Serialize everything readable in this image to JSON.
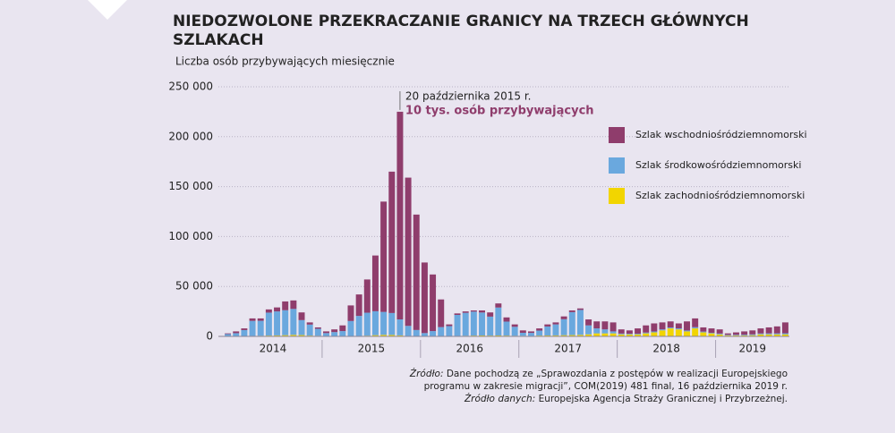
{
  "chart_data": {
    "type": "stacked_bar",
    "title": "NIEDOZWOLONE PRZEKRACZANIE GRANICY NA TRZECH GŁÓWNYCH SZLAKACH",
    "y_label": "Liczba osób przybywających miesięcznie",
    "annotation_date": "20 października 2015 r.",
    "annotation_text": "10 tys. osób przybywających",
    "annotation_index": 21,
    "categories": [
      null,
      null,
      null,
      null,
      null,
      null,
      null,
      null,
      null,
      null,
      null,
      null,
      null,
      null,
      null,
      null,
      null,
      null,
      null,
      null,
      null,
      null,
      null,
      null,
      null,
      null,
      null,
      null,
      null,
      null,
      null,
      null,
      null,
      null,
      null,
      null,
      null,
      null,
      null,
      null,
      null,
      null,
      null,
      null,
      null,
      null,
      null,
      null,
      null,
      null,
      null,
      null,
      null,
      null,
      null,
      null,
      null,
      null,
      null,
      null,
      null,
      null,
      null,
      null,
      null,
      null,
      null,
      null,
      null
    ],
    "groups": [
      {
        "label": "2014",
        "months": 12
      },
      {
        "label": "2015",
        "months": 12
      },
      {
        "label": "2016",
        "months": 12
      },
      {
        "label": "2017",
        "months": 12
      },
      {
        "label": "2018",
        "months": 12
      },
      {
        "label": "2019",
        "months": 9
      }
    ],
    "series": [
      {
        "name": "Szlak zachodniośródziemnomorski",
        "color": "#f2d500",
        "values": [
          300,
          200,
          300,
          500,
          600,
          800,
          1000,
          1200,
          1500,
          1300,
          800,
          600,
          300,
          300,
          300,
          400,
          500,
          700,
          1200,
          1500,
          1400,
          1000,
          500,
          400,
          300,
          300,
          300,
          300,
          500,
          600,
          800,
          900,
          800,
          900,
          800,
          600,
          600,
          500,
          800,
          900,
          1000,
          1200,
          1300,
          1500,
          2000,
          3000,
          3000,
          3000,
          2000,
          2000,
          2000,
          3000,
          4000,
          6000,
          8000,
          7000,
          5000,
          8000,
          4000,
          3000,
          2000,
          1000,
          1000,
          1000,
          1200,
          2000,
          2000,
          2000,
          2000
        ]
      },
      {
        "name": "Szlak środkowośródziemnomorski",
        "color": "#6aa8de",
        "values": [
          2000,
          3000,
          6000,
          15000,
          15000,
          23000,
          24000,
          25000,
          26000,
          15000,
          11000,
          7000,
          3000,
          4000,
          5000,
          15000,
          20000,
          23000,
          24000,
          23000,
          22000,
          16000,
          10000,
          6000,
          3000,
          5000,
          9000,
          10000,
          21000,
          23000,
          24000,
          23000,
          19000,
          28000,
          14000,
          9000,
          3000,
          3000,
          5000,
          9000,
          11000,
          16000,
          23000,
          25000,
          9000,
          5000,
          4000,
          2000,
          800,
          700,
          700,
          800,
          900,
          1000,
          900,
          1000,
          900,
          1200,
          800,
          600,
          800,
          500,
          600,
          700,
          800,
          900,
          1000,
          1000,
          1100
        ]
      },
      {
        "name": "Szlak wschodniośródziemnomorski",
        "color": "#8f3d6c",
        "values": [
          700,
          1800,
          1700,
          2500,
          2400,
          3200,
          4000,
          8800,
          8500,
          7700,
          2200,
          1400,
          1700,
          2700,
          5700,
          15600,
          21500,
          33300,
          55800,
          110500,
          141600,
          208000,
          148500,
          115600,
          70700,
          56700,
          27700,
          1700,
          1500,
          1400,
          1200,
          2100,
          4200,
          4100,
          4200,
          2400,
          2400,
          1500,
          2200,
          2100,
          2000,
          2800,
          1700,
          1500,
          6000,
          7000,
          8000,
          9000,
          4200,
          3300,
          5300,
          7200,
          8100,
          7000,
          6100,
          5000,
          9100,
          8800,
          4200,
          4400,
          4200,
          1500,
          2400,
          3300,
          4000,
          5100,
          6000,
          7000,
          10900
        ]
      }
    ],
    "ylim": [
      0,
      250000
    ],
    "yticks": [
      0,
      {
        "value": 50000,
        "label": "50 000"
      },
      {
        "value": 100000,
        "label": "100 000"
      },
      {
        "value": 150000,
        "label": "150 000"
      },
      {
        "value": 200000,
        "label": "200 000"
      },
      {
        "value": 250000,
        "label": "250 000"
      }
    ],
    "grid": true,
    "legend_order": [
      2,
      1,
      0
    ],
    "source_label": "Źródło:",
    "source_text": "Dane pochodzą ze „Sprawozdania z postępów w realizacji Europejskiego",
    "source_text2": "programu w zakresie migracji”, COM(2019) 481 final, 16 października 2019 r.",
    "data_source_label": "Źródło danych:",
    "data_source_text": "Europejska Agencja Straży Granicznej i Przybrzeżnej."
  }
}
